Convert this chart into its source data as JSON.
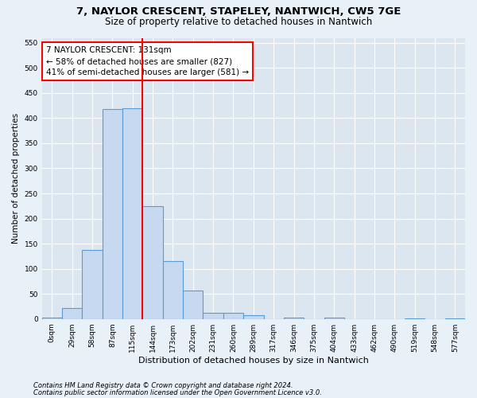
{
  "title1": "7, NAYLOR CRESCENT, STAPELEY, NANTWICH, CW5 7GE",
  "title2": "Size of property relative to detached houses in Nantwich",
  "xlabel": "Distribution of detached houses by size in Nantwich",
  "ylabel": "Number of detached properties",
  "bar_labels": [
    "0sqm",
    "29sqm",
    "58sqm",
    "87sqm",
    "115sqm",
    "144sqm",
    "173sqm",
    "202sqm",
    "231sqm",
    "260sqm",
    "289sqm",
    "317sqm",
    "346sqm",
    "375sqm",
    "404sqm",
    "433sqm",
    "462sqm",
    "490sqm",
    "519sqm",
    "548sqm",
    "577sqm"
  ],
  "bar_values": [
    2,
    22,
    137,
    418,
    420,
    225,
    115,
    57,
    13,
    13,
    7,
    0,
    2,
    0,
    2,
    0,
    0,
    0,
    1,
    0,
    1
  ],
  "bar_color": "#c6d9f0",
  "bar_edge_color": "#5b9bd5",
  "vline_color": "red",
  "vline_pos": 4.5,
  "annotation_text": "7 NAYLOR CRESCENT: 131sqm\n← 58% of detached houses are smaller (827)\n41% of semi-detached houses are larger (581) →",
  "annotation_box_color": "white",
  "annotation_box_edge": "red",
  "ylim": [
    0,
    560
  ],
  "yticks": [
    0,
    50,
    100,
    150,
    200,
    250,
    300,
    350,
    400,
    450,
    500,
    550
  ],
  "footnote1": "Contains HM Land Registry data © Crown copyright and database right 2024.",
  "footnote2": "Contains public sector information licensed under the Open Government Licence v3.0.",
  "bg_color": "#e8f0f8",
  "plot_bg_color": "#dce6f0",
  "grid_color": "white",
  "title1_fontsize": 9.5,
  "title2_fontsize": 8.5,
  "xlabel_fontsize": 8,
  "ylabel_fontsize": 7.5,
  "tick_fontsize": 6.5,
  "annot_fontsize": 7.5,
  "footnote_fontsize": 6
}
